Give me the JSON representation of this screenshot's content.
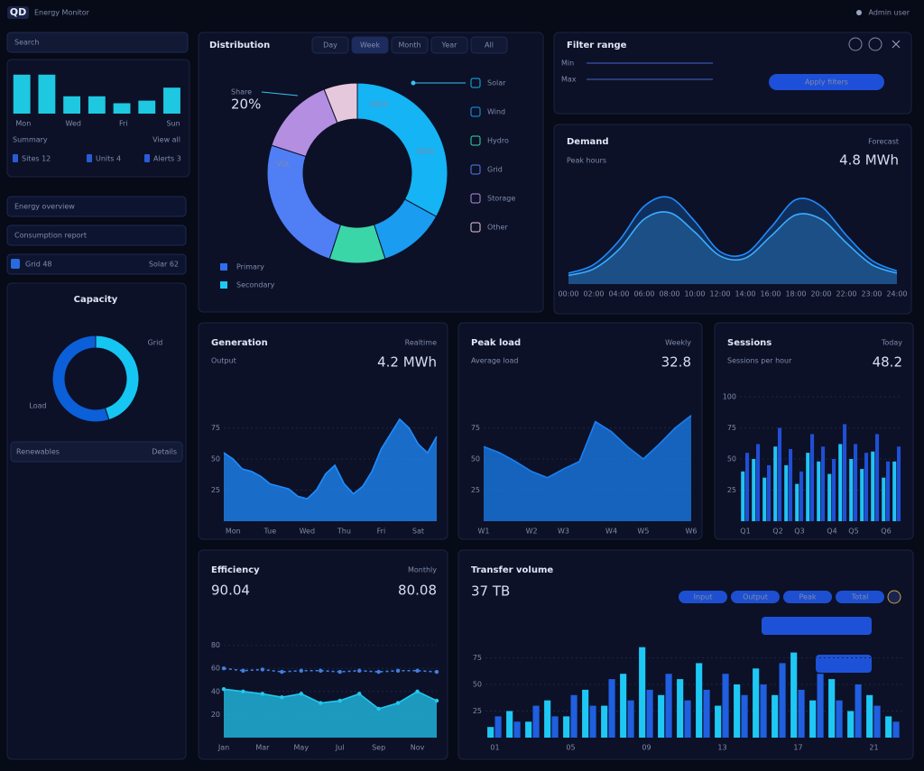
{
  "header": {
    "logo": "QD",
    "title": "Energy Monitor",
    "user": "Admin user"
  },
  "sidebar": {
    "search": "Search",
    "summary_chart": {
      "type": "bar",
      "categories": [
        "Mon",
        null,
        "Wed",
        null,
        "Fri",
        null,
        "Sun"
      ],
      "ylim": [
        0,
        50
      ],
      "series": [
        {
          "color": "#1ec8e0",
          "values": [
            45,
            45,
            20,
            20,
            12,
            15,
            30
          ]
        }
      ]
    },
    "summary_caption": "Summary",
    "summary_link": "View all",
    "stats": [
      "Sites 12",
      "Units 4",
      "Alerts 3"
    ],
    "menu": [
      "Energy overview",
      "Consumption report"
    ],
    "status": [
      "Grid 48",
      "Solar 62"
    ],
    "gauge": {
      "type": "pie",
      "title": "Capacity",
      "categories": [
        "Grid",
        "Load"
      ],
      "values": [
        45,
        55
      ],
      "colors": [
        "#16c6f2",
        "#0b5fd8"
      ]
    },
    "gauge_footer": "Renewables",
    "gauge_button": "Details"
  },
  "distribution": {
    "title": "Distribution",
    "tabs": [
      "Day",
      "Week",
      "Month",
      "Year",
      "All"
    ],
    "center_label": "Share",
    "center_value": "20%",
    "tags": [
      "DATA",
      "RATE",
      "VOL"
    ],
    "chart": {
      "type": "pie",
      "categories": [
        "Solar",
        "Wind",
        "Hydro",
        "Grid",
        "Storage",
        "Other"
      ],
      "values": [
        33,
        12,
        10,
        25,
        14,
        6
      ],
      "colors": [
        "#14b4f5",
        "#1a9cf0",
        "#3ad6a8",
        "#4f7ef5",
        "#b48ee0",
        "#e6c8dc"
      ]
    },
    "legend": [
      "Primary",
      "Secondary"
    ]
  },
  "filter": {
    "title": "Filter range",
    "labels": [
      "Min",
      "Max"
    ],
    "button": "Apply filters"
  },
  "demand": {
    "title": "Demand",
    "right": "Forecast",
    "subtitle": "Peak hours",
    "value": "4.8 MWh",
    "chart": {
      "type": "area",
      "smooth": true,
      "categories": [
        "00:00",
        "02:00",
        "04:00",
        "06:00",
        "08:00",
        "10:00",
        "12:00",
        "14:00",
        "16:00",
        "18:00",
        "20:00",
        "22:00",
        "23:00",
        "24:00"
      ],
      "ylim": [
        0,
        100
      ],
      "series": [
        {
          "color": "#1e8cff",
          "values": [
            10,
            18,
            40,
            72,
            80,
            58,
            30,
            28,
            52,
            78,
            72,
            45,
            22,
            12
          ]
        },
        {
          "color": "#3aaeff",
          "values": [
            8,
            14,
            32,
            60,
            66,
            48,
            26,
            24,
            44,
            64,
            60,
            38,
            18,
            10
          ]
        }
      ]
    }
  },
  "output": {
    "title": "Generation",
    "right": "Realtime",
    "subtitle": "Output",
    "value": "4.2 MWh",
    "chart": {
      "type": "area",
      "categories": [
        null,
        "Mon",
        null,
        null,
        null,
        "Tue",
        null,
        null,
        null,
        "Wed",
        null,
        null,
        null,
        "Thu",
        null,
        null,
        null,
        "Fri",
        null,
        null,
        null,
        "Sat",
        null,
        null
      ],
      "ylim": [
        0,
        100
      ],
      "yticks": [
        25,
        50,
        75
      ],
      "series": [
        {
          "color": "#1e8cff",
          "values": [
            55,
            50,
            42,
            40,
            36,
            30,
            28,
            26,
            20,
            18,
            25,
            38,
            45,
            30,
            22,
            28,
            40,
            58,
            70,
            82,
            75,
            62,
            55,
            68
          ]
        }
      ]
    }
  },
  "load": {
    "title": "Peak load",
    "right": "Weekly",
    "subtitle": "Average load",
    "value": "32.8",
    "chart": {
      "type": "area",
      "categories": [
        "W1",
        null,
        null,
        "W2",
        null,
        "W3",
        null,
        null,
        "W4",
        null,
        "W5",
        null,
        null,
        "W6"
      ],
      "ylim": [
        0,
        100
      ],
      "yticks": [
        25,
        50,
        75
      ],
      "series": [
        {
          "color": "#1a7ff0",
          "values": [
            60,
            55,
            48,
            40,
            35,
            42,
            48,
            80,
            72,
            60,
            50,
            62,
            75,
            85
          ]
        }
      ]
    }
  },
  "sessions": {
    "title": "Sessions",
    "right": "Today",
    "subtitle": "Sessions per hour",
    "value": "48.2",
    "chart": {
      "type": "bar",
      "categories": [
        "Q1",
        null,
        null,
        "Q2",
        null,
        "Q3",
        null,
        null,
        "Q4",
        null,
        "Q5",
        null,
        null,
        "Q6",
        null
      ],
      "ylim": [
        0,
        100
      ],
      "yticks": [
        25,
        50,
        75,
        100
      ],
      "series": [
        {
          "color": "#22c3f5",
          "values": [
            40,
            50,
            35,
            60,
            45,
            30,
            55,
            48,
            38,
            62,
            50,
            42,
            56,
            35,
            48
          ]
        },
        {
          "color": "#1f4fd6",
          "values": [
            55,
            62,
            45,
            75,
            58,
            40,
            70,
            60,
            50,
            78,
            62,
            55,
            70,
            48,
            60
          ]
        }
      ]
    }
  },
  "trend": {
    "title": "Efficiency",
    "right": "Monthly",
    "value": "90.04",
    "value_right": "80.08",
    "chart": {
      "type": "line",
      "categories": [
        "Jan",
        null,
        "Mar",
        null,
        "May",
        null,
        "Jul",
        null,
        "Sep",
        null,
        "Nov",
        null
      ],
      "ylim": [
        0,
        100
      ],
      "yticks": [
        20,
        40,
        60,
        80
      ],
      "series": [
        {
          "color": "#3f7fe0",
          "dashed": true,
          "values": [
            60,
            58,
            59,
            57,
            58,
            58,
            57,
            58,
            57,
            58,
            58,
            57
          ]
        },
        {
          "color": "#22c7f0",
          "fill": true,
          "values": [
            42,
            40,
            38,
            35,
            38,
            30,
            32,
            38,
            25,
            30,
            40,
            32
          ]
        }
      ]
    }
  },
  "volume": {
    "title": "Transfer volume",
    "value": "37 TB",
    "toggles": [
      "Input",
      "Output",
      "Peak",
      "Total"
    ],
    "chart": {
      "type": "bar",
      "categories": [
        "01",
        null,
        null,
        null,
        "05",
        null,
        null,
        null,
        "09",
        null,
        null,
        null,
        "13",
        null,
        null,
        null,
        "17",
        null,
        null,
        null,
        "21",
        null
      ],
      "ylim": [
        0,
        100
      ],
      "yticks": [
        25,
        50,
        75
      ],
      "series": [
        {
          "color": "#1ec8f5",
          "values": [
            10,
            25,
            15,
            35,
            20,
            45,
            30,
            60,
            85,
            40,
            55,
            70,
            30,
            50,
            65,
            40,
            80,
            35,
            55,
            25,
            40,
            20
          ]
        },
        {
          "color": "#1f5fe0",
          "values": [
            20,
            15,
            30,
            20,
            40,
            30,
            55,
            35,
            45,
            60,
            35,
            45,
            60,
            40,
            50,
            70,
            45,
            60,
            35,
            50,
            30,
            15
          ]
        }
      ]
    }
  }
}
